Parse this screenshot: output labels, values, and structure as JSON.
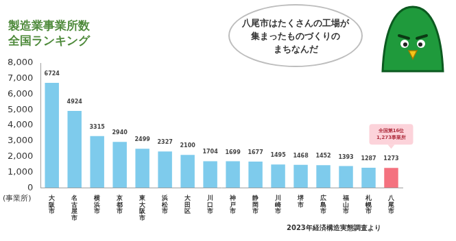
{
  "chart_data": {
    "type": "bar",
    "title": [
      "製造業事業所数",
      "全国ランキング"
    ],
    "categories": [
      "大阪市",
      "名古屋市",
      "横浜市",
      "京都市",
      "東大阪市",
      "浜松市",
      "大田区",
      "川口市",
      "神戸市",
      "静岡市",
      "川崎市",
      "堺市",
      "広島市",
      "福山市",
      "札幌市",
      "八尾市"
    ],
    "values": [
      6724,
      4924,
      3315,
      2940,
      2499,
      2327,
      2100,
      1704,
      1699,
      1677,
      1495,
      1468,
      1452,
      1393,
      1287,
      1273
    ],
    "colors": [
      "#7ecbec",
      "#7ecbec",
      "#7ecbec",
      "#7ecbec",
      "#7ecbec",
      "#7ecbec",
      "#7ecbec",
      "#7ecbec",
      "#7ecbec",
      "#7ecbec",
      "#7ecbec",
      "#7ecbec",
      "#7ecbec",
      "#7ecbec",
      "#7ecbec",
      "#f4727f"
    ],
    "ylim": [
      0,
      8000
    ],
    "yticks": [
      0,
      {
        "value": 1000,
        "label": "1,000"
      },
      {
        "value": 2000,
        "label": "2,000"
      },
      {
        "value": 3000,
        "label": "3,000"
      },
      {
        "value": 4000,
        "label": "4,000"
      },
      {
        "value": 5000,
        "label": "5,000"
      },
      {
        "value": 6000,
        "label": "6,000"
      },
      {
        "value": 7000,
        "label": "7,000"
      },
      {
        "value": 8000,
        "label": "8,000"
      }
    ],
    "ylabel": "(事業所)",
    "grid": false,
    "data_labels": true,
    "annotations": [
      {
        "text": [
          "八尾市はたくさんの工場が",
          "集まったものづくりの",
          "まちなんだ"
        ]
      },
      {
        "text": [
          "全国第16位",
          "1,273事業所"
        ],
        "category": "八尾市"
      },
      {
        "text": [
          "2023年経済構造実態調査より"
        ]
      }
    ]
  }
}
